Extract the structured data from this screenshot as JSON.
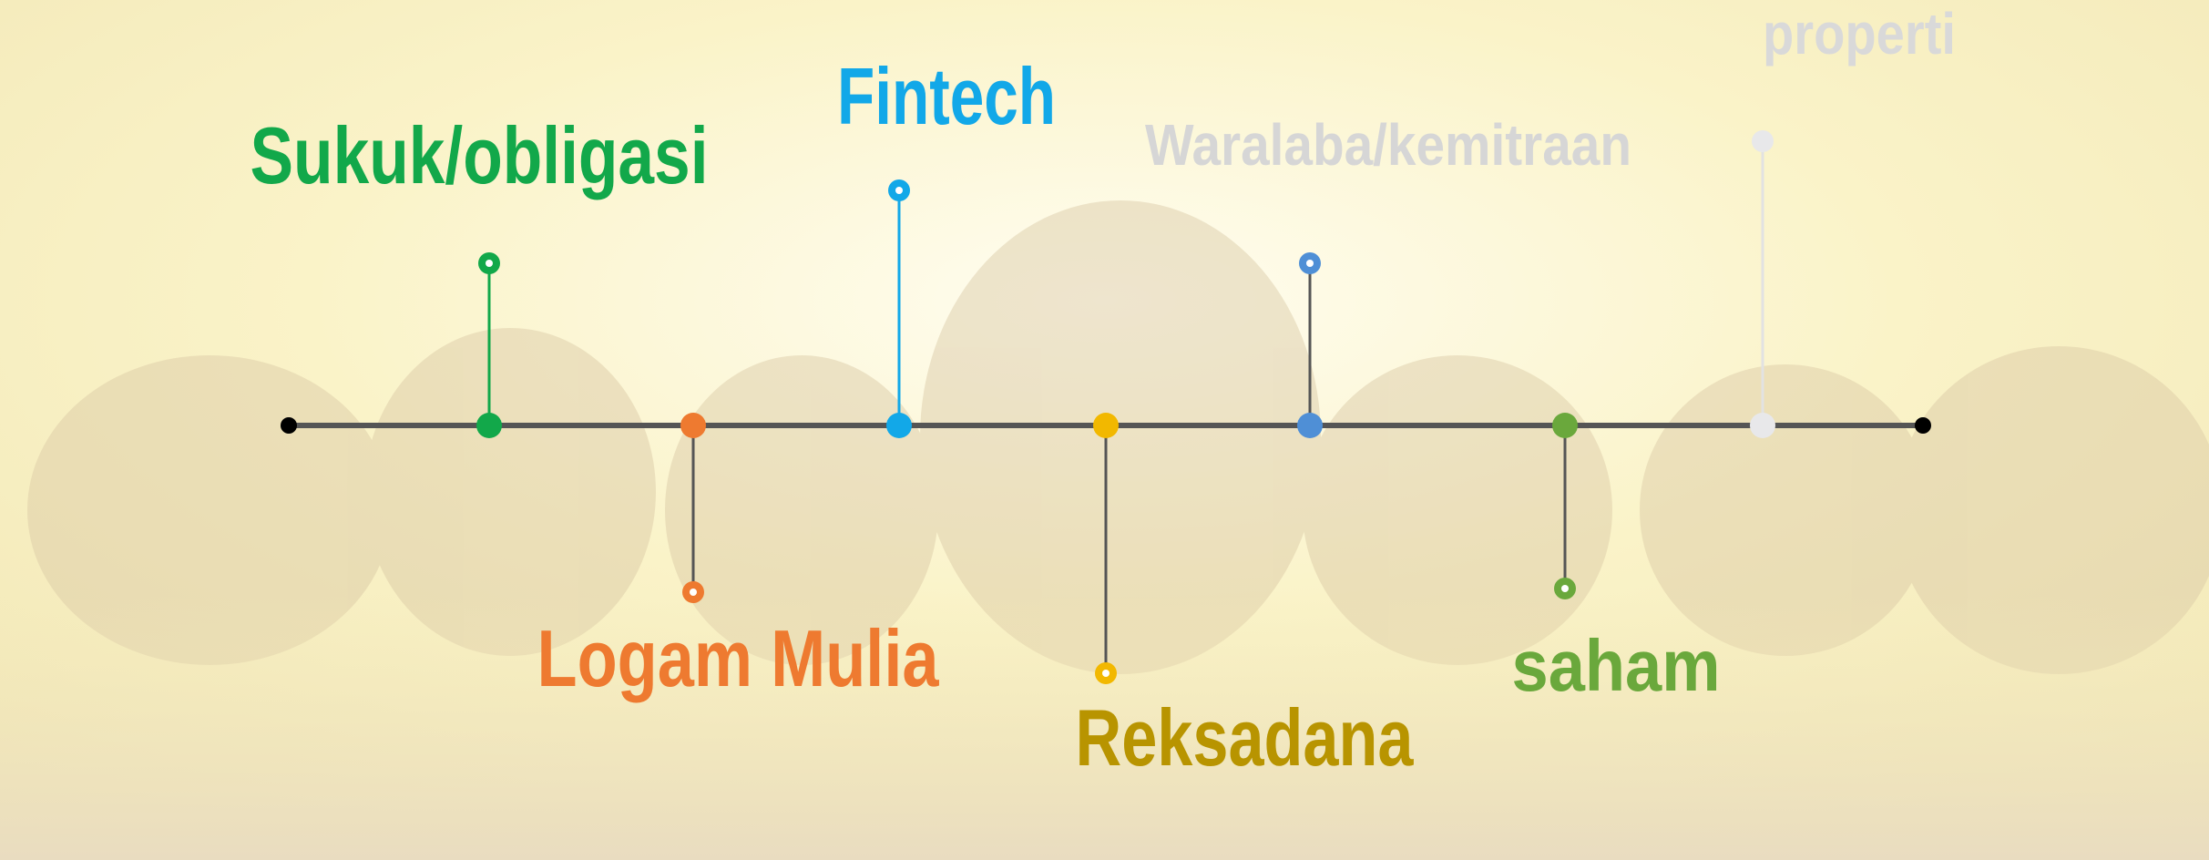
{
  "timeline": {
    "items": [
      {
        "label": "Sukuk/obligasi",
        "color": "#12a84a"
      },
      {
        "label": "Logam Mulia",
        "color": "#ee7a30"
      },
      {
        "label": "Fintech",
        "color": "#12a8e8"
      },
      {
        "label": "Reksadana",
        "color": "#b89400"
      },
      {
        "label": "Waralaba/kemitraan",
        "color": "#d6d6d6"
      },
      {
        "label": "saham",
        "color": "#6aa83c"
      },
      {
        "label": "properti",
        "color": "#d9d9d9"
      }
    ]
  }
}
